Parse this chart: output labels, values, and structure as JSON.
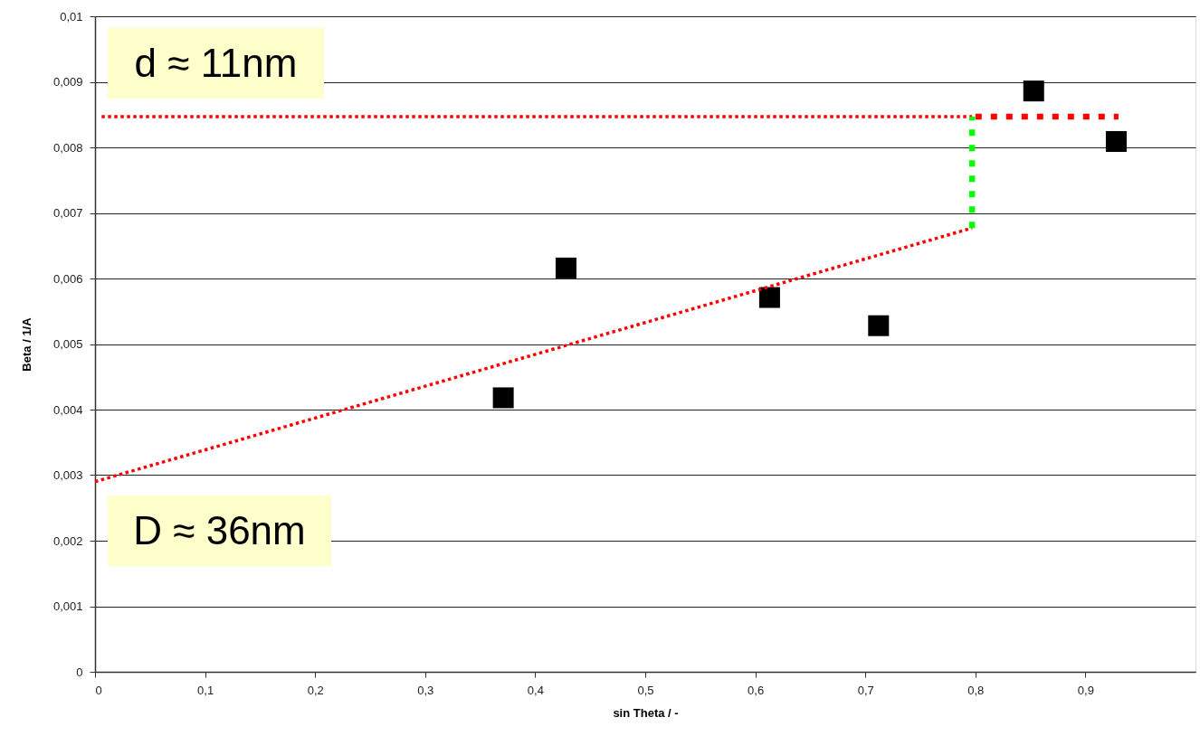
{
  "chart_data": {
    "type": "scatter",
    "xlabel": "sin Theta / -",
    "ylabel": "Beta / 1/A",
    "annotations": [
      "d ≈ 11nm",
      "D ≈ 36nm"
    ],
    "xlim": [
      0,
      1
    ],
    "xticks": [
      0,
      {
        "value": 0.1,
        "label": "0,1"
      },
      {
        "value": 0.2,
        "label": "0,2"
      },
      {
        "value": 0.3,
        "label": "0,3"
      },
      {
        "value": 0.4,
        "label": "0,4"
      },
      {
        "value": 0.5,
        "label": "0,5"
      },
      {
        "value": 0.6,
        "label": "0,6"
      },
      {
        "value": 0.7,
        "label": "0,7"
      },
      {
        "value": 0.8,
        "label": "0,8"
      },
      {
        "value": 0.9,
        "label": "0,9"
      }
    ],
    "ylim": [
      0,
      0.01
    ],
    "yticks": [
      0,
      {
        "value": 0.001,
        "label": "0,001"
      },
      {
        "value": 0.002,
        "label": "0,002"
      },
      {
        "value": 0.003,
        "label": "0,003"
      },
      {
        "value": 0.004,
        "label": "0,004"
      },
      {
        "value": 0.005,
        "label": "0,005"
      },
      {
        "value": 0.006,
        "label": "0,006"
      },
      {
        "value": 0.007,
        "label": "0,007"
      },
      {
        "value": 0.008,
        "label": "0,008"
      },
      {
        "value": 0.009,
        "label": "0,009"
      },
      {
        "value": 0.01,
        "label": "0,01"
      }
    ],
    "grid": "y",
    "series": [
      {
        "color": "#000000",
        "marker": "square",
        "x": [
          0.371,
          0.428,
          0.613,
          0.712,
          0.853,
          0.928
        ],
        "values": [
          0.00418,
          0.00616,
          0.00571,
          0.00528,
          0.00886,
          0.00809
        ]
      },
      {
        "type": "line",
        "color": "#ff0000",
        "line_style": "dotted",
        "x": [
          0,
          0.797
        ],
        "values": [
          0.0029,
          0.00677
        ]
      },
      {
        "type": "line",
        "color": "#ff0000",
        "line_style": "dotted",
        "x": [
          0.006,
          0.797
        ],
        "values": [
          0.00847,
          0.00847
        ]
      },
      {
        "type": "line",
        "color": "#00ff00",
        "line_style": "dashed",
        "x": [
          0.797,
          0.797
        ],
        "values": [
          0.00677,
          0.00847
        ]
      },
      {
        "type": "line",
        "color": "#ff0000",
        "line_style": "dashed",
        "x": [
          0.8,
          0.93
        ],
        "values": [
          0.00847,
          0.00847
        ]
      }
    ]
  }
}
